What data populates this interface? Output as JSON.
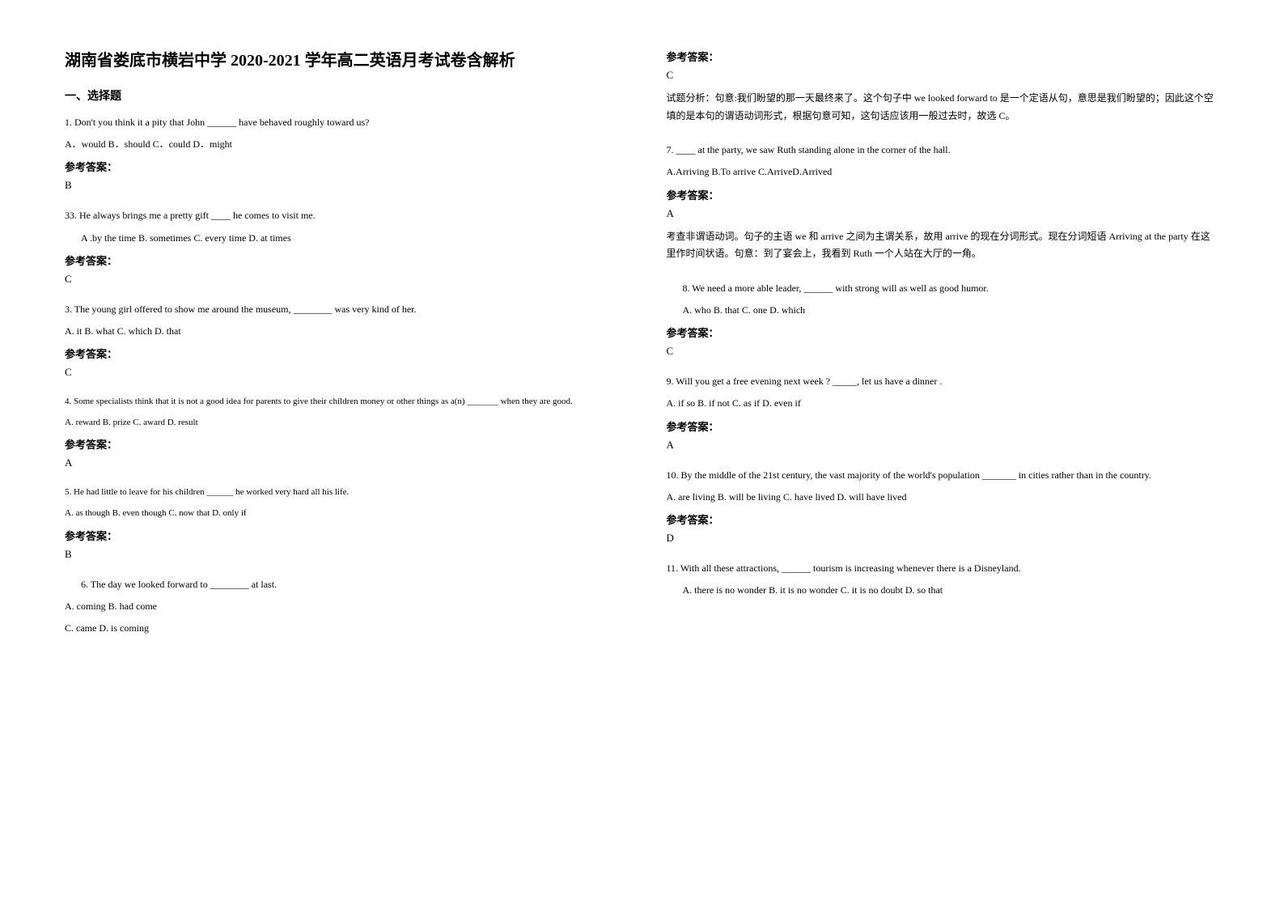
{
  "title": "湖南省娄底市横岩中学 2020-2021 学年高二英语月考试卷含解析",
  "section1_heading": "一、选择题",
  "left": {
    "q1": {
      "text": "1. Don't you think it a pity that John ______ have behaved roughly toward us?",
      "options": "A．would    B．should     C．could           D．might",
      "answer_label": "参考答案：",
      "answer": "B"
    },
    "q33": {
      "text": "33. He always brings me a pretty gift ____ he comes to visit me.",
      "options": "A .by the time  B. sometimes  C. every time  D. at times",
      "answer_label": "参考答案：",
      "answer": "C"
    },
    "q3": {
      "text": "3. The young girl offered to show me around the museum, ________ was very kind of her.",
      "options": "A. it     B. what   C. which   D. that",
      "answer_label": "参考答案：",
      "answer": "C"
    },
    "q4": {
      "text": "4. Some specialists think that it is not a good idea for parents to give their children money or other things as a(n) _______ when they are good.",
      "options": "A. reward    B. prize    C. award    D. result",
      "answer_label": "参考答案：",
      "answer": "A"
    },
    "q5": {
      "text": "5. He had little to leave for his children ______ he worked very hard all his life.",
      "options": "A. as though     B. even though     C. now that       D. only if",
      "answer_label": "参考答案：",
      "answer": "B"
    },
    "q6": {
      "text": "6. The day we looked forward to ________ at last.",
      "options1": "A. coming    B. had come",
      "options2": "C. came    D. is coming"
    }
  },
  "right": {
    "q6_answer": {
      "answer_label": "参考答案：",
      "answer": "C",
      "explanation": "试题分析：句意:我们盼望的那一天最终来了。这个句子中 we looked forward to 是一个定语从句，意思是我们盼望的；因此这个空填的是本句的谓语动词形式，根据句意可知，这句话应该用一般过去时，故选 C。"
    },
    "q7": {
      "text": "7. ____ at the party, we saw Ruth standing alone in the corner of the hall.",
      "options": "A.Arriving       B.To arrive      C.ArriveD.Arrived",
      "answer_label": "参考答案：",
      "answer": "A",
      "explanation": "考查非谓语动词。句子的主语 we 和 arrive 之间为主谓关系，故用 arrive 的现在分词形式。现在分词短语 Arriving at the party 在这里作时间状语。句意：到了宴会上，我看到 Ruth 一个人站在大厅的一角。"
    },
    "q8": {
      "text": "8. We need a more able leader, ______ with strong will as well as good humor.",
      "options": "A. who             B. that               C. one               D. which",
      "answer_label": "参考答案：",
      "answer": "C"
    },
    "q9": {
      "text": "9. Will you get a free evening next week ? _____, let us have a dinner .",
      "options": "A. if so           B. if not         C. as if          D. even if",
      "answer_label": "参考答案：",
      "answer": "A"
    },
    "q10": {
      "text": "10. By the middle of the 21st century, the vast majority of the world's population _______ in cities rather than in the country.",
      "options": "A. are living           B. will be living          C. have lived          D. will have lived",
      "answer_label": "参考答案：",
      "answer": "D"
    },
    "q11": {
      "text": "11. With all these attractions, ______ tourism is increasing whenever there is a Disneyland.",
      "options": "A. there is no wonder        B. it is no wonder      C. it is no doubt               D. so that"
    }
  }
}
